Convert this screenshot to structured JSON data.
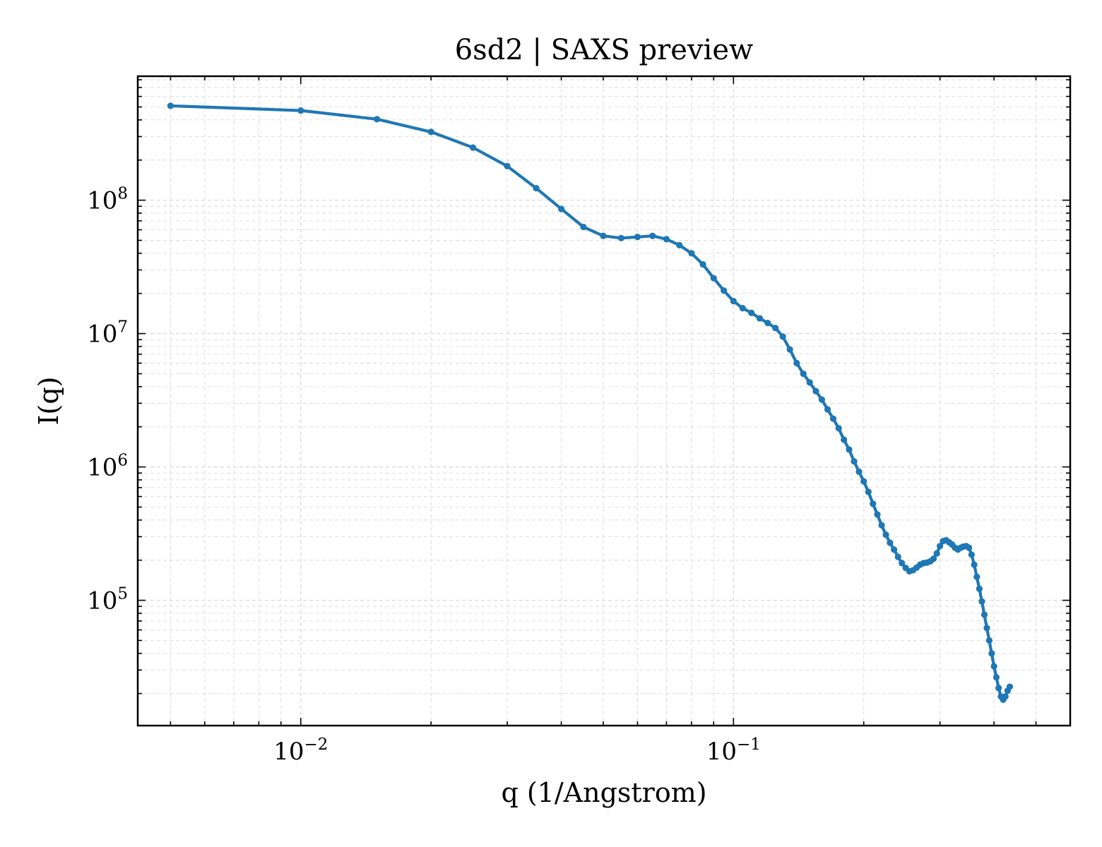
{
  "chart_data": {
    "type": "line",
    "title": "6sd2 | SAXS preview",
    "xlabel": "q (1/Angstrom)",
    "ylabel": "I(q)",
    "xscale": "log",
    "yscale": "log",
    "xlim": [
      0.0042,
      0.6
    ],
    "ylim": [
      11500,
      850000000
    ],
    "grid": true,
    "grid_style": "dashed, major and minor",
    "line_color": "#1f77b4",
    "marker": "dot",
    "x_ticks": [
      {
        "value": 0.01,
        "base": "10",
        "exponent": "−2"
      },
      {
        "value": 0.1,
        "base": "10",
        "exponent": "−1"
      }
    ],
    "y_ticks": [
      {
        "value": 100000,
        "base": "10",
        "exponent": "5"
      },
      {
        "value": 1000000,
        "base": "10",
        "exponent": "6"
      },
      {
        "value": 10000000,
        "base": "10",
        "exponent": "7"
      },
      {
        "value": 100000000,
        "base": "10",
        "exponent": "8"
      }
    ],
    "series": [
      {
        "points": [
          [
            0.005,
            510000000
          ],
          [
            0.01,
            470000000
          ],
          [
            0.015,
            405000000
          ],
          [
            0.02,
            325000000
          ],
          [
            0.025,
            248000000
          ],
          [
            0.03,
            180000000
          ],
          [
            0.035,
            123000000
          ],
          [
            0.04,
            86000000
          ],
          [
            0.045,
            63000000
          ],
          [
            0.05,
            54000000
          ],
          [
            0.055,
            52000000
          ],
          [
            0.06,
            53000000
          ],
          [
            0.065,
            54000000
          ],
          [
            0.07,
            51000000
          ],
          [
            0.075,
            46000000
          ],
          [
            0.08,
            40000000
          ],
          [
            0.085,
            33000000
          ],
          [
            0.09,
            26000000
          ],
          [
            0.095,
            21000000
          ],
          [
            0.1,
            17500000
          ],
          [
            0.105,
            15500000
          ],
          [
            0.11,
            14300000
          ],
          [
            0.115,
            13000000
          ],
          [
            0.12,
            12000000
          ],
          [
            0.125,
            11000000
          ],
          [
            0.13,
            9500000
          ],
          [
            0.135,
            7600000
          ],
          [
            0.14,
            6000000
          ],
          [
            0.145,
            5000000
          ],
          [
            0.15,
            4300000
          ],
          [
            0.155,
            3700000
          ],
          [
            0.16,
            3200000
          ],
          [
            0.165,
            2700000
          ],
          [
            0.17,
            2300000
          ],
          [
            0.175,
            1950000
          ],
          [
            0.18,
            1600000
          ],
          [
            0.185,
            1350000
          ],
          [
            0.19,
            1100000
          ],
          [
            0.195,
            920000
          ],
          [
            0.2,
            780000
          ],
          [
            0.205,
            650000
          ],
          [
            0.21,
            530000
          ],
          [
            0.215,
            440000
          ],
          [
            0.22,
            365000
          ],
          [
            0.225,
            310000
          ],
          [
            0.23,
            270000
          ],
          [
            0.235,
            240000
          ],
          [
            0.24,
            212000
          ],
          [
            0.245,
            190000
          ],
          [
            0.25,
            175000
          ],
          [
            0.255,
            165000
          ],
          [
            0.26,
            168000
          ],
          [
            0.265,
            176000
          ],
          [
            0.27,
            185000
          ],
          [
            0.275,
            190000
          ],
          [
            0.28,
            192000
          ],
          [
            0.285,
            196000
          ],
          [
            0.29,
            205000
          ],
          [
            0.295,
            225000
          ],
          [
            0.3,
            255000
          ],
          [
            0.305,
            278000
          ],
          [
            0.31,
            282000
          ],
          [
            0.315,
            272000
          ],
          [
            0.32,
            262000
          ],
          [
            0.325,
            248000
          ],
          [
            0.33,
            240000
          ],
          [
            0.335,
            248000
          ],
          [
            0.34,
            253000
          ],
          [
            0.345,
            255000
          ],
          [
            0.35,
            248000
          ],
          [
            0.355,
            220000
          ],
          [
            0.36,
            185000
          ],
          [
            0.365,
            150000
          ],
          [
            0.37,
            122000
          ],
          [
            0.375,
            98000
          ],
          [
            0.38,
            78000
          ],
          [
            0.385,
            62000
          ],
          [
            0.39,
            50000
          ],
          [
            0.395,
            40000
          ],
          [
            0.4,
            32000
          ],
          [
            0.405,
            26500
          ],
          [
            0.41,
            22000
          ],
          [
            0.415,
            19000
          ],
          [
            0.42,
            18000
          ],
          [
            0.425,
            19000
          ],
          [
            0.43,
            21000
          ],
          [
            0.435,
            22500
          ]
        ]
      }
    ]
  }
}
